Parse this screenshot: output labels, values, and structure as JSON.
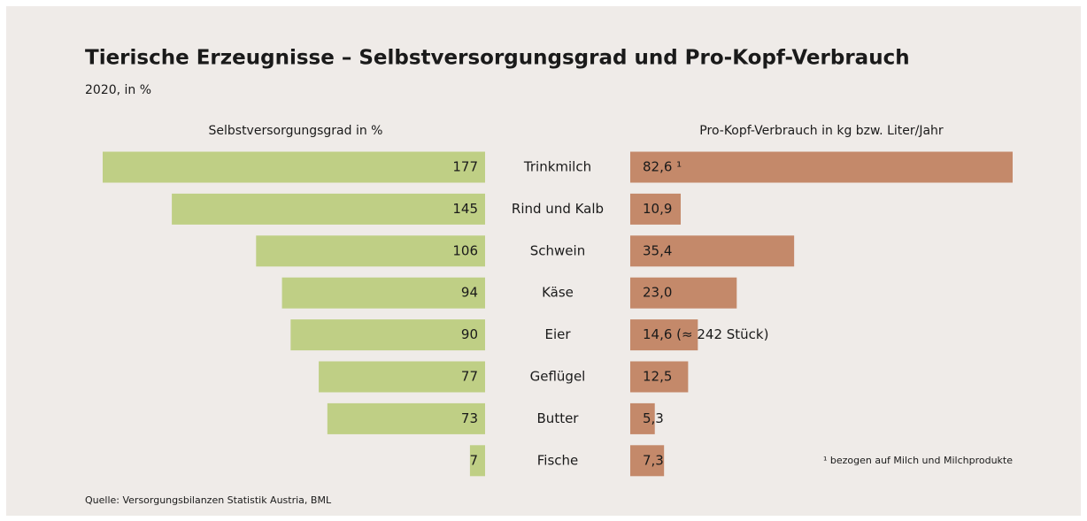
{
  "chart_data": {
    "type": "butterfly",
    "title": "Tierische Erzeugnisse – Selbstversorgungsgrad und Pro-Kopf-Verbrauch",
    "subtitle": "2020, in %",
    "categories": [
      "Trinkmilch",
      "Rind und Kalb",
      "Schwein",
      "Käse",
      "Eier",
      "Geflügel",
      "Butter",
      "Fische"
    ],
    "series": [
      {
        "name": "Selbstversorgungsgrad in %",
        "color": "#bfcf85",
        "values": [
          177,
          145,
          106,
          94,
          90,
          77,
          73,
          7
        ]
      },
      {
        "name": "Pro-Kopf-Verbrauch in kg bzw. Liter/Jahr",
        "color": "#c4896a",
        "values": [
          82.6,
          10.9,
          35.4,
          23.0,
          14.6,
          12.5,
          5.3,
          7.3
        ],
        "value_labels": [
          "82,6 ¹",
          "10,9",
          "35,4",
          "23,0",
          "14,6 (≈ 242 Stück)",
          "12,5",
          "5,3",
          "7,3"
        ]
      }
    ],
    "footnote": "¹ bezogen auf Milch und Milchprodukte",
    "source": "Quelle: Versorgungsbilanzen Statistik Austria, BML"
  }
}
